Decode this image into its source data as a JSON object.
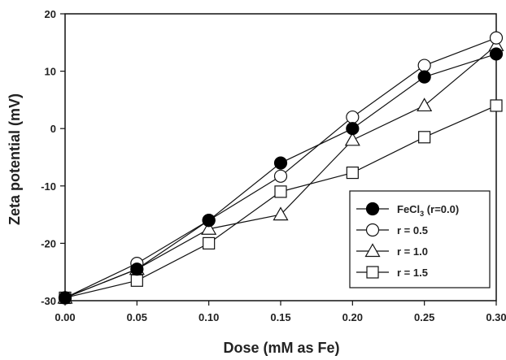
{
  "chart_data": {
    "type": "line",
    "title": "",
    "xlabel": "Dose (mM as Fe)",
    "ylabel": "Zeta  potential  (mV)",
    "xlim": [
      0.0,
      0.3
    ],
    "ylim": [
      -30,
      20
    ],
    "xticks": [
      "0.00",
      "0.05",
      "0.10",
      "0.15",
      "0.20",
      "0.25",
      "0.30"
    ],
    "yticks": [
      "-30",
      "-20",
      "-10",
      "0",
      "10",
      "20"
    ],
    "grid": false,
    "legend_position": "bottom-right",
    "x": [
      0.0,
      0.05,
      0.1,
      0.15,
      0.2,
      0.25,
      0.3
    ],
    "series": [
      {
        "name": "FeCl",
        "name_sub": "3",
        "name_suffix": " (r=0.0)",
        "marker": "filled-circle",
        "color": "#111111",
        "values": [
          -29.5,
          -24.5,
          -16.0,
          -6.0,
          0.0,
          9.0,
          13.0
        ]
      },
      {
        "name": "r = 0.5",
        "marker": "open-circle",
        "color": "#111111",
        "values": [
          -29.5,
          -23.5,
          -16.0,
          -8.3,
          2.0,
          11.0,
          15.8
        ]
      },
      {
        "name": "r = 1.0",
        "marker": "open-triangle",
        "color": "#111111",
        "values": [
          -29.5,
          -24.5,
          -17.5,
          -15.0,
          -2.0,
          4.0,
          14.5
        ]
      },
      {
        "name": "r = 1.5",
        "marker": "open-square",
        "color": "#111111",
        "values": [
          -29.5,
          -26.5,
          -20.0,
          -11.0,
          -7.7,
          -1.5,
          4.0
        ]
      }
    ]
  }
}
